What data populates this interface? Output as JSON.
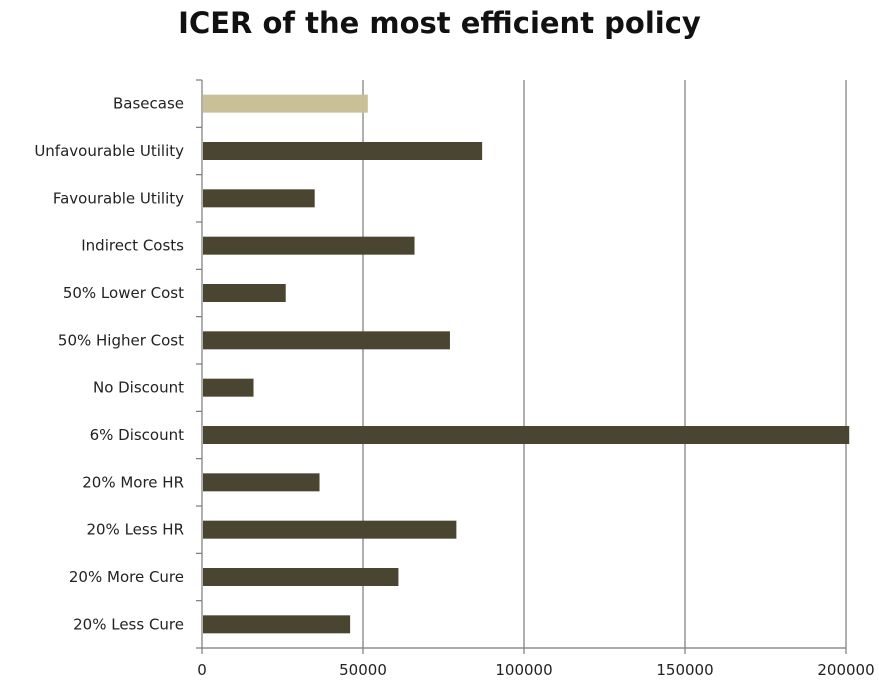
{
  "chart_data": {
    "type": "bar",
    "orientation": "horizontal",
    "title": "ICER of the most efficient policy",
    "xlabel": "",
    "ylabel": "",
    "categories": [
      "Basecase",
      "Unfavourable Utility",
      "Favourable Utility",
      "Indirect Costs",
      "50% Lower Cost",
      "50% Higher Cost",
      "No Discount",
      "6% Discount",
      "20% More HR",
      "20% Less HR",
      "20% More Cure",
      "20% Less Cure"
    ],
    "values": [
      51500,
      87000,
      35000,
      66000,
      26000,
      77000,
      16000,
      201000,
      36500,
      79000,
      61000,
      46000
    ],
    "xlim": [
      0,
      200000
    ],
    "xticks": [
      "0",
      "50000",
      "100000",
      "150000",
      "200000"
    ],
    "xtick_values": [
      0,
      50000,
      100000,
      150000,
      200000
    ],
    "grid": "vertical",
    "legend": "none",
    "colors": {
      "highlight": "#c9c098",
      "bar": "#4a4530",
      "grid": "#7a7a7a"
    },
    "highlight_category": "Basecase"
  }
}
